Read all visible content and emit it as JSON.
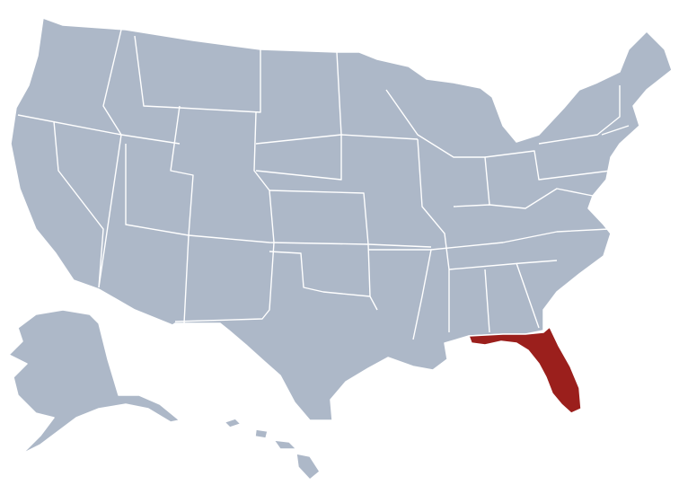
{
  "map": {
    "base_color": "#adb8c8",
    "highlight_color": "#9b1f1c",
    "border_color": "#ffffff",
    "background_color": "#ffffff"
  }
}
